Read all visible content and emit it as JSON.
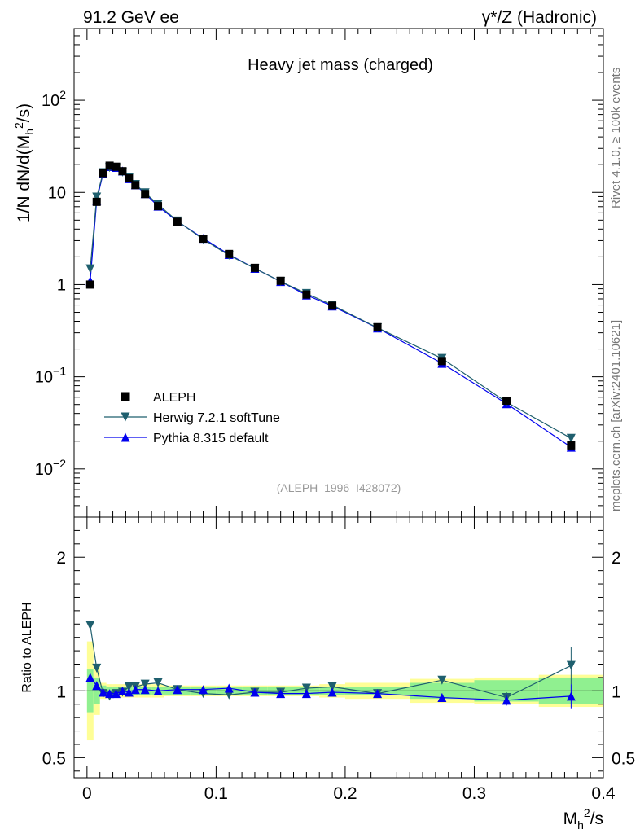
{
  "header": {
    "left": "91.2 GeV ee",
    "right": "γ*/Z (Hadronic)"
  },
  "side": {
    "rivet": "Rivet 4.1.0, ≥ 100k events",
    "mcplots": "mcplots.cern.ch [arXiv:2401.10621]"
  },
  "chart_data": [
    {
      "type": "line",
      "title": "Heavy jet mass (charged)",
      "ylabel": "1/N  dN/d(M_h^2/s)",
      "ylabel_text": {
        "pre": "1/N   dN/d(M",
        "sub": "h",
        "sup": "2",
        "post": "/s)"
      },
      "yscale": "log",
      "xlim": [
        -0.01,
        0.4
      ],
      "ylim": [
        0.003,
        600
      ],
      "yticks": [
        {
          "value": 0.01,
          "base": "10",
          "exp": "−2"
        },
        {
          "value": 0.1,
          "base": "10",
          "exp": "−1"
        },
        {
          "value": 1,
          "base": "1",
          "exp": ""
        },
        {
          "value": 10,
          "base": "10",
          "exp": ""
        },
        {
          "value": 100,
          "base": "10",
          "exp": "2"
        }
      ],
      "watermark": "(ALEPH_1996_I428072)",
      "legend_position": "lower-left",
      "x": [
        0.0025,
        0.0075,
        0.0125,
        0.0175,
        0.0225,
        0.0275,
        0.0325,
        0.0375,
        0.045,
        0.055,
        0.07,
        0.09,
        0.11,
        0.13,
        0.15,
        0.17,
        0.19,
        0.225,
        0.275,
        0.325,
        0.375
      ],
      "series": [
        {
          "name": "ALEPH",
          "marker": "square",
          "color": "#000000",
          "values": [
            1.0,
            7.9,
            16.2,
            19.5,
            19.0,
            17.0,
            14.2,
            12.0,
            9.6,
            7.1,
            4.8,
            3.15,
            2.15,
            1.52,
            1.1,
            0.78,
            0.59,
            0.345,
            0.148,
            0.055,
            0.018
          ]
        },
        {
          "name": "Herwig 7.2.1 softTune",
          "marker": "triangle-down",
          "color": "#1f5f6e",
          "values": [
            1.48,
            8.9,
            16.4,
            18.6,
            18.4,
            16.6,
            14.4,
            12.2,
            9.9,
            7.4,
            4.9,
            3.1,
            2.08,
            1.5,
            1.08,
            0.8,
            0.6,
            0.34,
            0.158,
            0.053,
            0.0215
          ]
        },
        {
          "name": "Pythia 8.315 default",
          "marker": "triangle-up",
          "color": "#0000ee",
          "values": [
            1.1,
            8.2,
            16.1,
            19.1,
            18.7,
            17.1,
            14.1,
            12.1,
            9.7,
            7.1,
            4.85,
            3.18,
            2.12,
            1.5,
            1.08,
            0.77,
            0.585,
            0.338,
            0.14,
            0.051,
            0.0172
          ]
        }
      ]
    },
    {
      "type": "line",
      "ylabel": "Ratio to ALEPH",
      "xlabel": "M_h^2/s",
      "xlabel_text": {
        "pre": "M",
        "sub": "h",
        "sup": "2",
        "post": "/s"
      },
      "xlim": [
        -0.01,
        0.4
      ],
      "ylim": [
        0.35,
        2.3
      ],
      "yticks": [
        {
          "value": 0.5,
          "label": "0.5"
        },
        {
          "value": 1,
          "label": "1"
        },
        {
          "value": 2,
          "label": "2"
        }
      ],
      "xticks": [
        {
          "value": 0,
          "label": "0"
        },
        {
          "value": 0.1,
          "label": "0.1"
        },
        {
          "value": 0.2,
          "label": "0.2"
        },
        {
          "value": 0.3,
          "label": "0.3"
        },
        {
          "value": 0.4,
          "label": "0.4"
        }
      ],
      "x": [
        0.0025,
        0.0075,
        0.0125,
        0.0175,
        0.0225,
        0.0275,
        0.0325,
        0.0375,
        0.045,
        0.055,
        0.07,
        0.09,
        0.11,
        0.13,
        0.15,
        0.17,
        0.19,
        0.225,
        0.275,
        0.325,
        0.375
      ],
      "bins": [
        [
          0,
          0.005
        ],
        [
          0.005,
          0.01
        ],
        [
          0.01,
          0.015
        ],
        [
          0.015,
          0.02
        ],
        [
          0.02,
          0.025
        ],
        [
          0.025,
          0.03
        ],
        [
          0.03,
          0.035
        ],
        [
          0.035,
          0.04
        ],
        [
          0.04,
          0.05
        ],
        [
          0.05,
          0.06
        ],
        [
          0.06,
          0.08
        ],
        [
          0.08,
          0.1
        ],
        [
          0.1,
          0.12
        ],
        [
          0.12,
          0.14
        ],
        [
          0.14,
          0.16
        ],
        [
          0.16,
          0.18
        ],
        [
          0.18,
          0.2
        ],
        [
          0.2,
          0.25
        ],
        [
          0.25,
          0.3
        ],
        [
          0.3,
          0.35
        ],
        [
          0.35,
          0.4
        ]
      ],
      "band_stat": [
        0.16,
        0.1,
        0.04,
        0.03,
        0.03,
        0.03,
        0.03,
        0.03,
        0.03,
        0.03,
        0.03,
        0.03,
        0.03,
        0.03,
        0.03,
        0.03,
        0.03,
        0.03,
        0.06,
        0.08,
        0.1
      ],
      "band_total": [
        0.37,
        0.18,
        0.06,
        0.05,
        0.05,
        0.05,
        0.05,
        0.05,
        0.05,
        0.05,
        0.04,
        0.04,
        0.04,
        0.04,
        0.04,
        0.04,
        0.05,
        0.06,
        0.09,
        0.1,
        0.12
      ],
      "series": [
        {
          "name": "Herwig 7.2.1 softTune",
          "marker": "triangle-down",
          "color": "#1f5f6e",
          "values": [
            1.49,
            1.17,
            0.98,
            0.96,
            0.98,
            0.99,
            1.03,
            1.03,
            1.05,
            1.06,
            1.01,
            0.98,
            0.97,
            0.99,
            0.99,
            1.02,
            1.03,
            0.98,
            1.08,
            0.95,
            1.19
          ],
          "errors": [
            0.02,
            0.02,
            0.01,
            0.01,
            0.01,
            0.01,
            0.01,
            0.01,
            0.01,
            0.01,
            0.01,
            0.01,
            0.01,
            0.01,
            0.01,
            0.01,
            0.01,
            0.01,
            0.02,
            0.04,
            0.14
          ]
        },
        {
          "name": "Pythia 8.315 default",
          "marker": "triangle-up",
          "color": "#0000ee",
          "values": [
            1.1,
            1.04,
            0.99,
            0.98,
            0.98,
            1.0,
            0.99,
            1.01,
            1.01,
            1.0,
            1.01,
            1.01,
            1.02,
            0.99,
            0.98,
            0.98,
            0.99,
            0.98,
            0.95,
            0.93,
            0.96
          ],
          "errors": [
            0.02,
            0.02,
            0.01,
            0.01,
            0.01,
            0.01,
            0.01,
            0.01,
            0.01,
            0.01,
            0.01,
            0.01,
            0.01,
            0.01,
            0.01,
            0.01,
            0.01,
            0.01,
            0.03,
            0.04,
            0.09
          ]
        }
      ]
    }
  ],
  "colors": {
    "band_stat": "#90f090",
    "band_total": "#fefe96",
    "axis": "#000000",
    "watermark": "#999999",
    "side_text": "#777777"
  }
}
